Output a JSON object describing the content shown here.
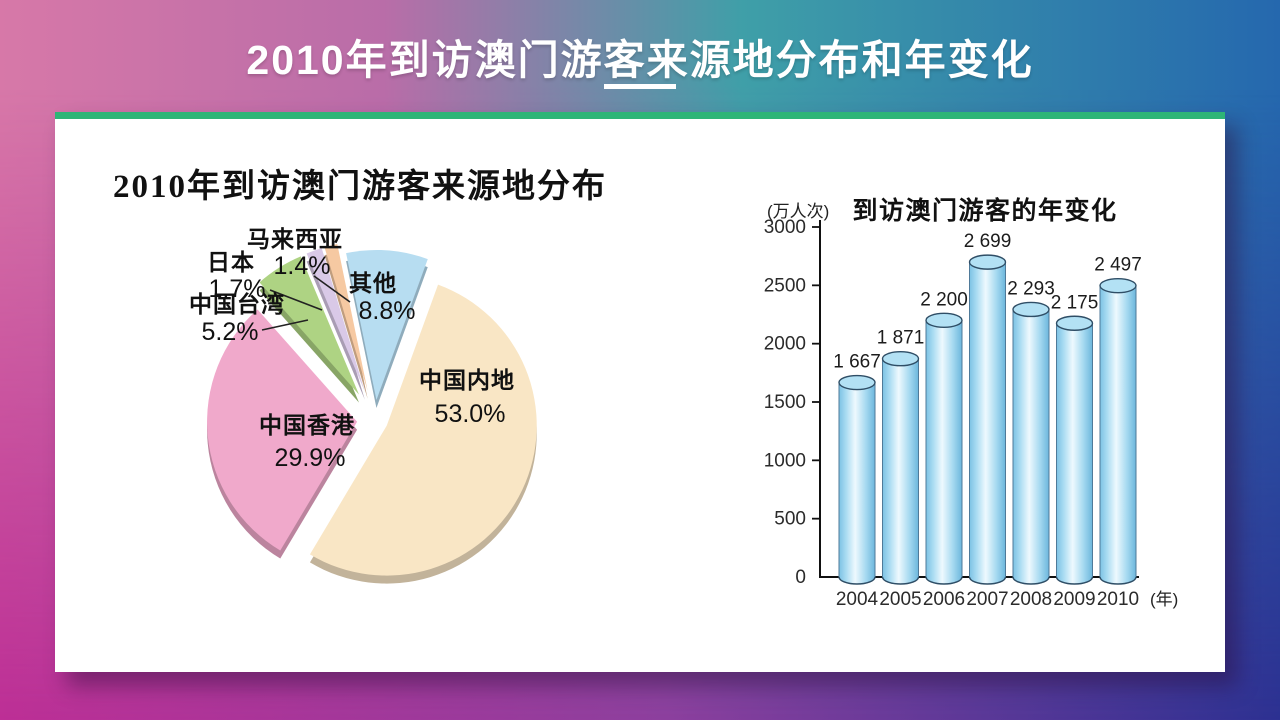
{
  "slide": {
    "title": "2010年到访澳门游客来源地分布和年变化",
    "accent_color": "#2eb577",
    "background": {
      "top_left": "#d778a8",
      "top_center": "#3f9fa8",
      "top_right": "#2568ae",
      "bottom_left": "#bd2f96",
      "bottom_right": "#2d3192"
    }
  },
  "chart_data": [
    {
      "type": "pie",
      "title": "2010年到访澳门游客来源地分布",
      "exploded": true,
      "start_angle_deg": 20,
      "slices": [
        {
          "label": "中国内地",
          "value": 53.0,
          "percent_label": "53.0%",
          "color": "#f9e6c5"
        },
        {
          "label": "中国香港",
          "value": 29.9,
          "percent_label": "29.9%",
          "color": "#f0a9cb"
        },
        {
          "label": "中国台湾",
          "value": 5.2,
          "percent_label": "5.2%",
          "color": "#aed383"
        },
        {
          "label": "日本",
          "value": 1.7,
          "percent_label": "1.7%",
          "color": "#d9c9e7"
        },
        {
          "label": "马来西亚",
          "value": 1.4,
          "percent_label": "1.4%",
          "color": "#f6c9a2"
        },
        {
          "label": "其他",
          "value": 8.8,
          "percent_label": "8.8%",
          "color": "#b7ddf1"
        }
      ]
    },
    {
      "type": "bar",
      "title": "到访澳门游客的年变化",
      "y_unit_label": "(万人次)",
      "x_unit_label": "(年)",
      "categories": [
        "2004",
        "2005",
        "2006",
        "2007",
        "2008",
        "2009",
        "2010"
      ],
      "values": [
        1667,
        1871,
        2200,
        2699,
        2293,
        2175,
        2497
      ],
      "value_labels": [
        "1 667",
        "1 871",
        "2 200",
        "2 699",
        "2 293",
        "2 175",
        "2 497"
      ],
      "ylim": [
        0,
        3000
      ],
      "ytick_step": 500,
      "ytick_labels": [
        "0",
        "500",
        "1000",
        "1500",
        "2000",
        "2500",
        "3000"
      ],
      "bar_color": "#9ed7f0",
      "grid": false,
      "legend": "none"
    }
  ]
}
